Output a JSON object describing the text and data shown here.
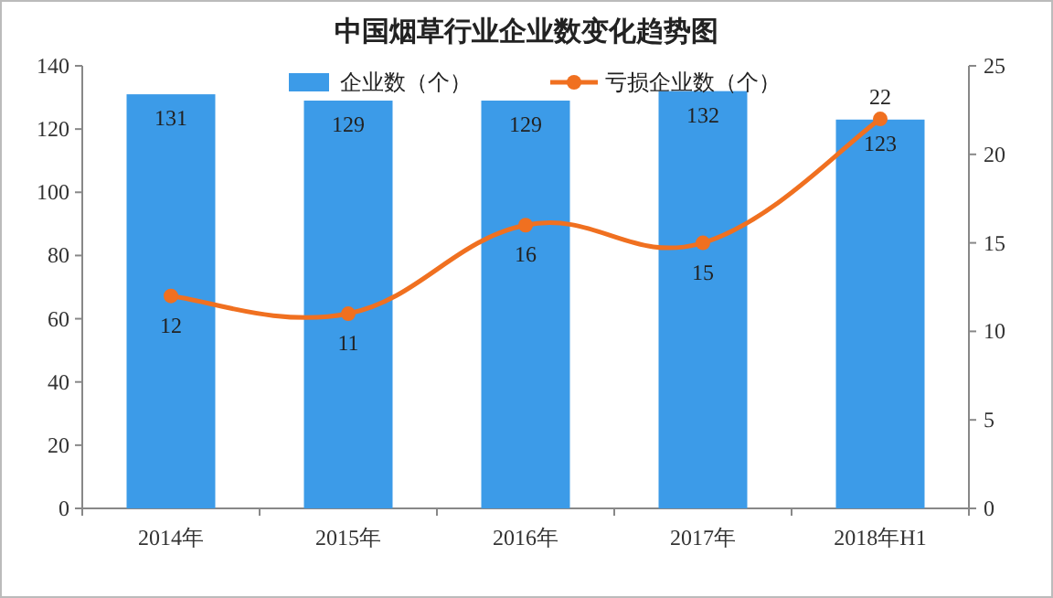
{
  "chart_data": {
    "type": "bar",
    "title": "中国烟草行业企业数变化趋势图",
    "categories": [
      "2014年",
      "2015年",
      "2016年",
      "2017年",
      "2018年H1"
    ],
    "series": [
      {
        "name": "企业数（个）",
        "color": "#3c9be8",
        "values": [
          131,
          129,
          129,
          132,
          123
        ]
      },
      {
        "name": "亏损企业数（个）",
        "type": "line",
        "axis": "y2",
        "color": "#f07020",
        "values": [
          12,
          11,
          16,
          15,
          22
        ]
      }
    ],
    "ylim": [
      0,
      140
    ],
    "yticks": [
      0,
      20,
      40,
      60,
      80,
      100,
      120,
      140
    ],
    "y2lim": [
      0,
      25
    ],
    "y2ticks": [
      0,
      5,
      10,
      15,
      20,
      25
    ],
    "data_labels": true,
    "legend": "top",
    "marker": "circle",
    "grid": false
  }
}
